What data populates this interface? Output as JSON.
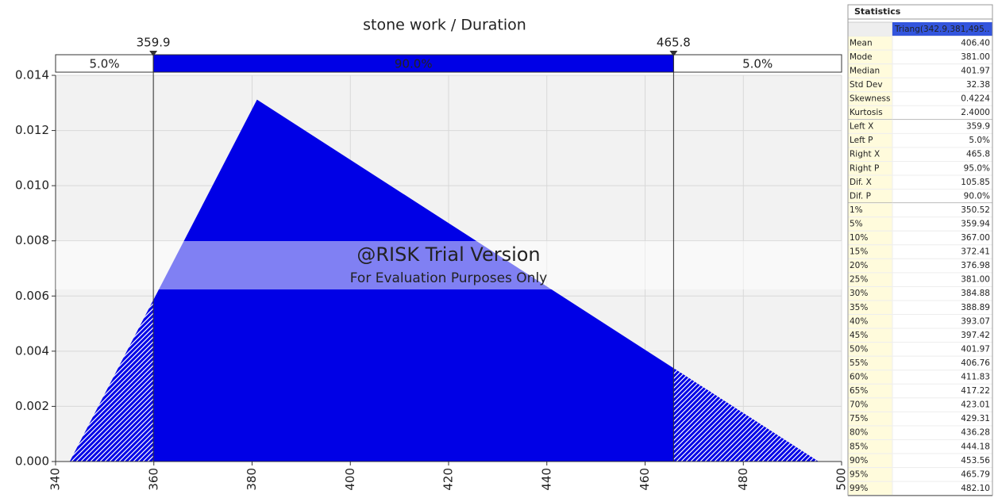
{
  "chart_data": {
    "type": "triangular",
    "title": "stone work / Duration",
    "x": [
      342.9,
      381,
      495.3
    ],
    "values": [
      0,
      0.01312,
      0
    ],
    "color": "#0000e6",
    "xlim": [
      340,
      500
    ],
    "xticks": [
      340,
      360,
      380,
      400,
      420,
      440,
      460,
      480,
      500
    ],
    "ylim": [
      0,
      0.014
    ],
    "yticks": [
      {
        "value": 0,
        "label": "0.000"
      },
      0.002,
      0.004,
      0.006,
      0.008,
      {
        "value": 0.01,
        "label": "0.010"
      },
      0.012,
      0.014
    ],
    "grid": true,
    "left_x": 359.9,
    "right_x": 465.8,
    "band_labels": [
      "5.0%",
      "90.0%",
      "5.0%"
    ],
    "watermark": [
      "@RISK Trial Version",
      "For Evaluation Purposes Only"
    ]
  },
  "statistics": {
    "title": "Statistics",
    "column": "Triang(342.9,381,495..",
    "groups": [
      [
        [
          "Mean",
          "406.40"
        ],
        [
          "Mode",
          "381.00"
        ],
        [
          "Median",
          "401.97"
        ],
        [
          "Std Dev",
          "32.38"
        ],
        [
          "Skewness",
          "0.4224"
        ],
        [
          "Kurtosis",
          "2.4000"
        ]
      ],
      [
        [
          "Left X",
          "359.9"
        ],
        [
          "Left P",
          "5.0%"
        ],
        [
          "Right X",
          "465.8"
        ],
        [
          "Right P",
          "95.0%"
        ],
        [
          "Dif. X",
          "105.85"
        ],
        [
          "Dif. P",
          "90.0%"
        ]
      ],
      [
        [
          "1%",
          "350.52"
        ],
        [
          "5%",
          "359.94"
        ],
        [
          "10%",
          "367.00"
        ],
        [
          "15%",
          "372.41"
        ],
        [
          "20%",
          "376.98"
        ],
        [
          "25%",
          "381.00"
        ],
        [
          "30%",
          "384.88"
        ],
        [
          "35%",
          "388.89"
        ],
        [
          "40%",
          "393.07"
        ],
        [
          "45%",
          "397.42"
        ],
        [
          "50%",
          "401.97"
        ],
        [
          "55%",
          "406.76"
        ],
        [
          "60%",
          "411.83"
        ],
        [
          "65%",
          "417.22"
        ],
        [
          "70%",
          "423.01"
        ],
        [
          "75%",
          "429.31"
        ],
        [
          "80%",
          "436.28"
        ],
        [
          "85%",
          "444.18"
        ],
        [
          "90%",
          "453.56"
        ],
        [
          "95%",
          "465.79"
        ],
        [
          "99%",
          "482.10"
        ]
      ]
    ]
  }
}
